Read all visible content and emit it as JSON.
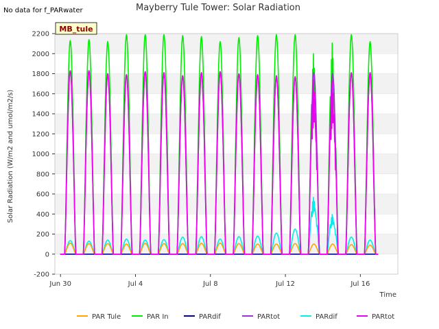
{
  "chart_data": {
    "type": "line",
    "title": "Mayberry Tule Tower: Solar Radiation",
    "nodata_note": "No data for f_PARwater",
    "site_badge": "MB_tule",
    "xlabel": "Time",
    "ylabel": "Solar Radiation (W/m2 and umol/m2/s)",
    "xlim": [
      -0.3,
      18.0
    ],
    "ylim": [
      -200,
      2200
    ],
    "x_ticks": [
      {
        "value": 0,
        "label": "Jun 30"
      },
      {
        "value": 4,
        "label": "Jul 4"
      },
      {
        "value": 8,
        "label": "Jul 8"
      },
      {
        "value": 12,
        "label": "Jul 12"
      },
      {
        "value": 16,
        "label": "Jul 16"
      }
    ],
    "y_ticks": [
      -200,
      0,
      200,
      400,
      600,
      800,
      1000,
      1200,
      1400,
      1600,
      1800,
      2000,
      2200
    ],
    "grid": "horizontal-bands",
    "legend_position": "bottom",
    "series": [
      {
        "name": "PAR Tule",
        "color": "#ffa500",
        "daily_peak": [
          110,
          105,
          105,
          100,
          108,
          105,
          105,
          108,
          110,
          105,
          100,
          100,
          105,
          100,
          100,
          95,
          90
        ]
      },
      {
        "name": "PAR In",
        "color": "#00ee00",
        "daily_peak": [
          2130,
          2140,
          2120,
          2190,
          2190,
          2190,
          2180,
          2170,
          2120,
          2160,
          2180,
          2190,
          2190,
          2080,
          2190,
          2190,
          2120
        ]
      },
      {
        "name": "PARdif",
        "color": "#00008b",
        "daily_peak": [
          0,
          0,
          0,
          0,
          0,
          0,
          0,
          0,
          0,
          0,
          0,
          0,
          0,
          0,
          0,
          0,
          0
        ]
      },
      {
        "name": "PARtot",
        "color": "#9a30d8",
        "daily_peak": [
          1830,
          1830,
          1800,
          1790,
          1820,
          1810,
          1780,
          1810,
          1820,
          1800,
          1790,
          1780,
          1770,
          1810,
          1800,
          1810,
          1810
        ]
      },
      {
        "name": "PARdif",
        "color": "#00eeee",
        "daily_peak": [
          135,
          130,
          140,
          150,
          140,
          145,
          170,
          175,
          150,
          175,
          180,
          210,
          250,
          590,
          410,
          170,
          140
        ]
      },
      {
        "name": "PARtot",
        "color": "#ee00ee",
        "daily_peak": [
          1830,
          1830,
          1800,
          1790,
          1820,
          1810,
          1780,
          1810,
          1820,
          1800,
          1790,
          1770,
          1770,
          1810,
          1800,
          1810,
          1810
        ]
      }
    ]
  }
}
